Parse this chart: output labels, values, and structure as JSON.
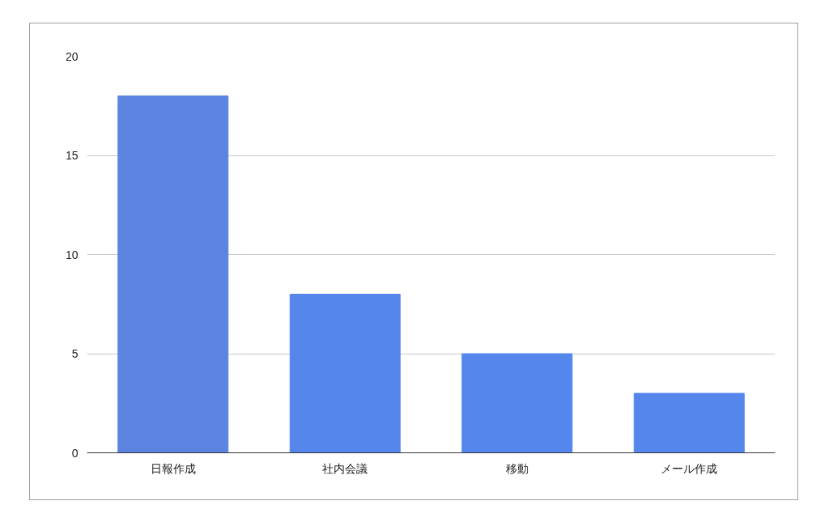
{
  "chart_data": {
    "type": "bar",
    "categories": [
      "日報作成",
      "社内会議",
      "移動",
      "メール作成"
    ],
    "values": [
      18,
      8,
      5,
      3
    ],
    "colors": [
      "#5b84e0",
      "#5486ec",
      "#5486ec",
      "#5486ec"
    ],
    "ylim": [
      0,
      20
    ],
    "yticks": [
      0,
      5,
      10,
      15,
      20
    ],
    "grid": "y"
  }
}
